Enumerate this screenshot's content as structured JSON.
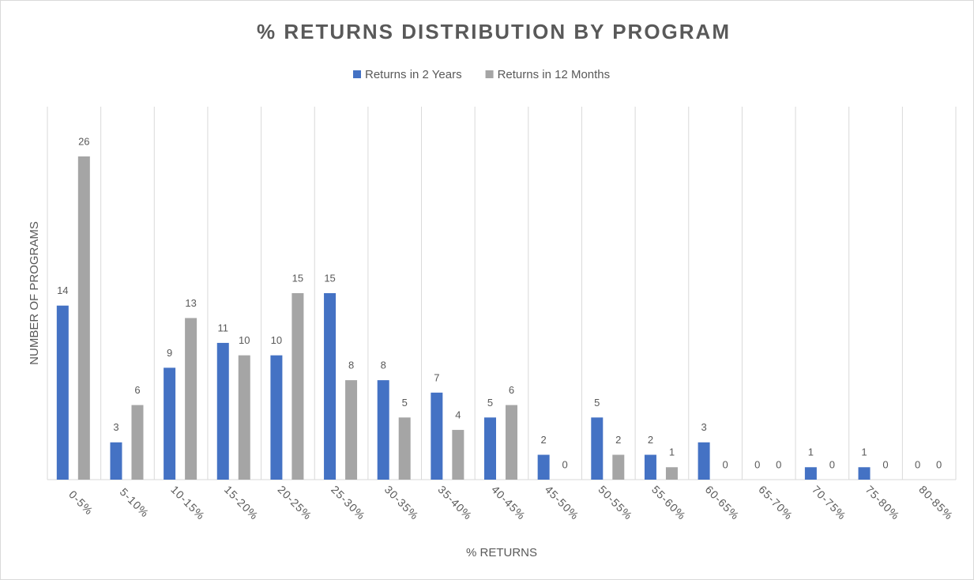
{
  "chart_data": {
    "type": "bar",
    "title": "% RETURNS DISTRIBUTION BY PROGRAM",
    "x_label": "% RETURNS",
    "y_label": "NUMBER OF PROGRAMS",
    "categories": [
      "0-5%",
      "5-10%",
      "10-15%",
      "15-20%",
      "20-25%",
      "25-30%",
      "30-35%",
      "35-40%",
      "40-45%",
      "45-50%",
      "50-55%",
      "55-60%",
      "60-65%",
      "65-70%",
      "70-75%",
      "75-80%",
      "80-85%"
    ],
    "series": [
      {
        "name": "Returns in 2 Years",
        "color": "#4472c4",
        "values": [
          14,
          3,
          9,
          11,
          10,
          15,
          8,
          7,
          5,
          2,
          5,
          2,
          3,
          0,
          1,
          1,
          0
        ]
      },
      {
        "name": "Returns in 12 Months",
        "color": "#a5a5a5",
        "values": [
          26,
          6,
          13,
          10,
          15,
          8,
          5,
          4,
          6,
          0,
          2,
          1,
          0,
          0,
          0,
          0,
          0
        ]
      }
    ],
    "ylim": [
      0,
      30
    ],
    "grid": true,
    "legend": "top"
  }
}
